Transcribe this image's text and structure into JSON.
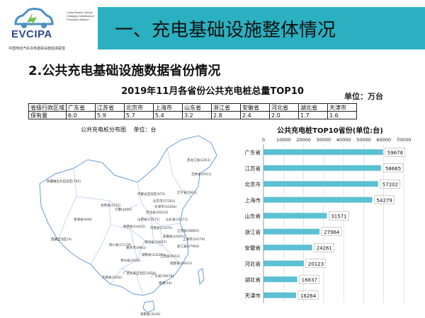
{
  "logo": {
    "name": "EVCIPA",
    "sub_en": "China Electric Vehicle Charging Infrastructure Promotion Alliance",
    "sub_cn": "中国电动汽车充电基础设施促进联盟"
  },
  "header": {
    "title": "一、充电基础设施整体情况"
  },
  "section": {
    "title": "2.公共充电基础设施数据省份情况"
  },
  "chart_title": "2019年11月各省份公共充电桩总量TOP10",
  "unit_label": "单位：万台",
  "table": {
    "row_labels": [
      "省级行政区域",
      "保有量"
    ],
    "provinces": [
      "广东省",
      "江苏省",
      "北京市",
      "上海市",
      "山东省",
      "浙江省",
      "安徽省",
      "河北省",
      "湖北省",
      "天津市"
    ],
    "values": [
      "6.0",
      "5.9",
      "5.7",
      "5.4",
      "3.2",
      "2.8",
      "2.4",
      "2.0",
      "1.7",
      "1.6"
    ]
  },
  "map": {
    "caption_title": "公共充电桩分布图",
    "caption_unit": "单位：台",
    "labels": [
      "黑龙江省(2263)",
      "吉林省(2911)",
      "内蒙古自治区(973)",
      "辽宁省(5911)",
      "北京市(57202)",
      "天津市(16264)",
      "河北省(20123)",
      "新疆维吾尔自治区(792)",
      "宁夏(1016)",
      "山西省(15571)",
      "山东省(31571)",
      "甘肃省(1215)",
      "青海省(948)",
      "陕西省(14425)",
      "河南省(11075)",
      "江苏省(58665)",
      "西藏自治区(3)",
      "安徽省(24261)",
      "上海市(54279)",
      "四川省(11179)",
      "湖北省(16837)",
      "浙江省(27964)",
      "重庆市(4961)",
      "湖南省(10229)",
      "江西省(6012)",
      "贵州省(2052)",
      "福建省(16021)",
      "云南省(2032)",
      "广西壮族自治区(1816)",
      "广东省(59678)",
      "香港(14)",
      "海南省(3146)"
    ]
  },
  "chart_data": {
    "type": "bar",
    "orientation": "horizontal",
    "title": "公共充电桩TOP10省份(单位:台)",
    "categories": [
      "广东省",
      "江苏省",
      "北京市",
      "上海市",
      "山东省",
      "浙江省",
      "安徽省",
      "河北省",
      "湖北省",
      "天津市"
    ],
    "values": [
      59678,
      58665,
      57202,
      54279,
      31571,
      27964,
      24261,
      20123,
      16837,
      16264
    ],
    "xlim": [
      0,
      70000
    ],
    "xticks": [
      0,
      10000,
      20000,
      30000,
      40000,
      50000,
      60000,
      70000
    ],
    "xtick_position": "top",
    "grid": true,
    "legend": "none",
    "bar_color": "#5bc0d2"
  }
}
